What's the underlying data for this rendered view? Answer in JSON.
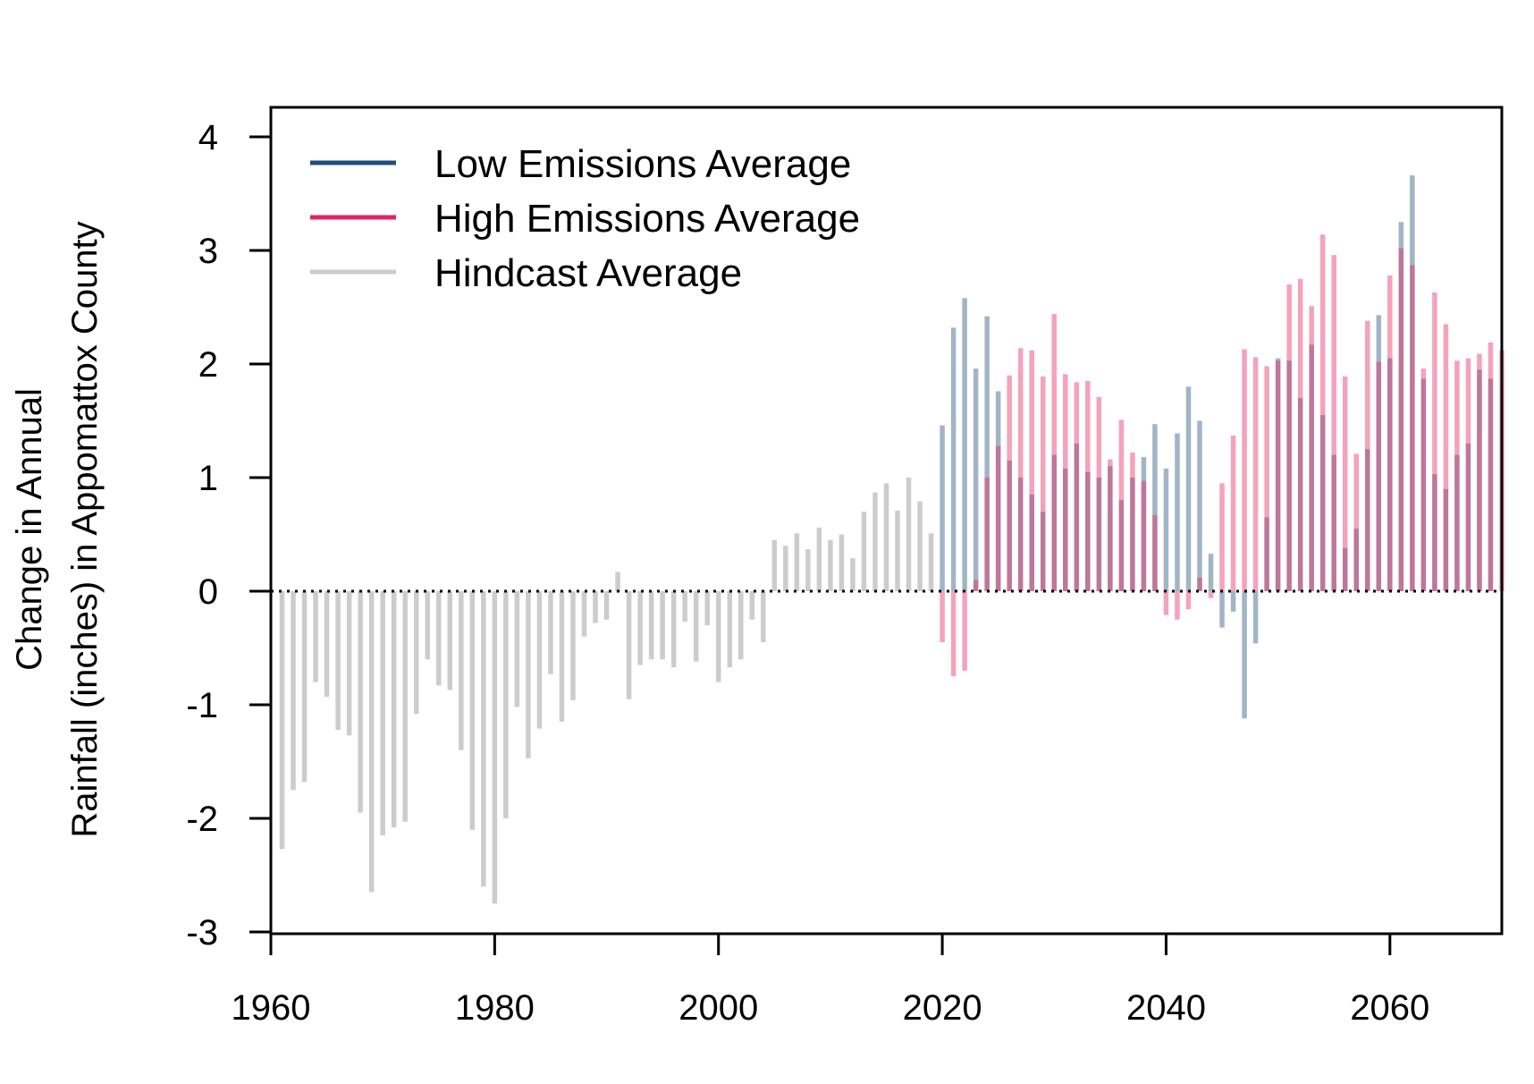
{
  "chart_data": {
    "type": "bar",
    "title": "",
    "ylabel_lines": [
      "Change in Annual",
      "Rainfall (inches) in Appomattox County"
    ],
    "xlabel": "",
    "xlim": [
      1960,
      2070
    ],
    "ylim": [
      -3,
      4
    ],
    "x_ticks": [
      "1960",
      "1980",
      "2000",
      "2020",
      "2040",
      "2060"
    ],
    "y_ticks": [
      "4",
      "3",
      "2",
      "1",
      "0",
      "-1",
      "-2",
      "-3"
    ],
    "grid": false,
    "zero_line": "dotted",
    "legend": {
      "position": "top-left",
      "entries": [
        {
          "label": "Low Emissions Average",
          "color": "#1f4e79"
        },
        {
          "label": "High Emissions Average",
          "color": "#e8215e"
        },
        {
          "label": "Hindcast Average",
          "color": "#cccccc"
        }
      ]
    },
    "series": [
      {
        "name": "Hindcast Average",
        "color": "#cccccc",
        "x": [
          1961,
          1962,
          1963,
          1964,
          1965,
          1966,
          1967,
          1968,
          1969,
          1970,
          1971,
          1972,
          1973,
          1974,
          1975,
          1976,
          1977,
          1978,
          1979,
          1980,
          1981,
          1982,
          1983,
          1984,
          1985,
          1986,
          1987,
          1988,
          1989,
          1990,
          1991,
          1992,
          1993,
          1994,
          1995,
          1996,
          1997,
          1998,
          1999,
          2000,
          2001,
          2002,
          2003,
          2004,
          2005,
          2006,
          2007,
          2008,
          2009,
          2010,
          2011,
          2012,
          2013,
          2014,
          2015,
          2016,
          2017,
          2018,
          2019
        ],
        "values": [
          -2.27,
          -1.75,
          -1.68,
          -0.8,
          -0.93,
          -1.22,
          -1.27,
          -1.95,
          -2.65,
          -2.15,
          -2.08,
          -2.03,
          -1.08,
          -0.6,
          -0.83,
          -0.87,
          -1.4,
          -2.1,
          -2.6,
          -2.75,
          -2.0,
          -1.02,
          -1.47,
          -1.21,
          -0.73,
          -1.15,
          -0.96,
          -0.4,
          -0.28,
          -0.25,
          0.17,
          -0.95,
          -0.65,
          -0.6,
          -0.6,
          -0.67,
          -0.27,
          -0.62,
          -0.3,
          -0.8,
          -0.67,
          -0.6,
          -0.25,
          -0.45,
          0.45,
          0.4,
          0.51,
          0.37,
          0.56,
          0.45,
          0.5,
          0.29,
          0.7,
          0.87,
          0.95,
          0.71,
          1.0,
          0.79,
          0.51
        ]
      },
      {
        "name": "Low Emissions Average",
        "color": "#1f4e79",
        "x": [
          2020,
          2021,
          2022,
          2023,
          2024,
          2025,
          2026,
          2027,
          2028,
          2029,
          2030,
          2031,
          2032,
          2033,
          2034,
          2035,
          2036,
          2037,
          2038,
          2039,
          2040,
          2041,
          2042,
          2043,
          2044,
          2045,
          2046,
          2047,
          2048,
          2049,
          2050,
          2051,
          2052,
          2053,
          2054,
          2055,
          2056,
          2057,
          2058,
          2059,
          2060,
          2061,
          2062,
          2063,
          2064,
          2065,
          2066,
          2067,
          2068,
          2069
        ],
        "values": [
          1.46,
          2.32,
          2.58,
          1.96,
          2.42,
          1.76,
          1.15,
          1.0,
          0.85,
          0.7,
          1.2,
          1.08,
          1.3,
          1.05,
          1.0,
          1.1,
          0.8,
          1.0,
          1.18,
          1.47,
          1.08,
          1.39,
          1.8,
          1.5,
          0.33,
          -0.32,
          -0.18,
          -1.12,
          -0.46,
          0.65,
          2.05,
          2.03,
          1.7,
          2.17,
          1.55,
          1.2,
          0.38,
          0.55,
          1.25,
          2.43,
          2.05,
          3.25,
          3.66,
          1.87,
          1.03,
          0.9,
          1.2,
          1.3,
          1.95,
          1.87
        ]
      },
      {
        "name": "High Emissions Average",
        "color": "#e8215e",
        "x": [
          2020,
          2021,
          2022,
          2023,
          2024,
          2025,
          2026,
          2027,
          2028,
          2029,
          2030,
          2031,
          2032,
          2033,
          2034,
          2035,
          2036,
          2037,
          2038,
          2039,
          2040,
          2041,
          2042,
          2043,
          2044,
          2045,
          2046,
          2047,
          2048,
          2049,
          2050,
          2051,
          2052,
          2053,
          2054,
          2055,
          2056,
          2057,
          2058,
          2059,
          2060,
          2061,
          2062,
          2063,
          2064,
          2065,
          2066,
          2067,
          2068,
          2069,
          2070
        ],
        "values": [
          -0.45,
          -0.75,
          -0.7,
          0.1,
          1.0,
          1.28,
          1.9,
          2.14,
          2.12,
          1.89,
          2.44,
          1.91,
          1.84,
          1.85,
          1.71,
          1.16,
          1.51,
          1.22,
          0.97,
          0.67,
          -0.21,
          -0.25,
          -0.16,
          0.12,
          -0.06,
          0.95,
          1.37,
          2.13,
          2.06,
          1.98,
          2.03,
          2.7,
          2.75,
          2.51,
          3.14,
          2.96,
          1.89,
          1.21,
          2.38,
          2.02,
          2.78,
          3.02,
          2.87,
          1.96,
          2.63,
          2.35,
          2.03,
          2.05,
          2.09,
          2.19,
          2.12
        ]
      }
    ]
  }
}
